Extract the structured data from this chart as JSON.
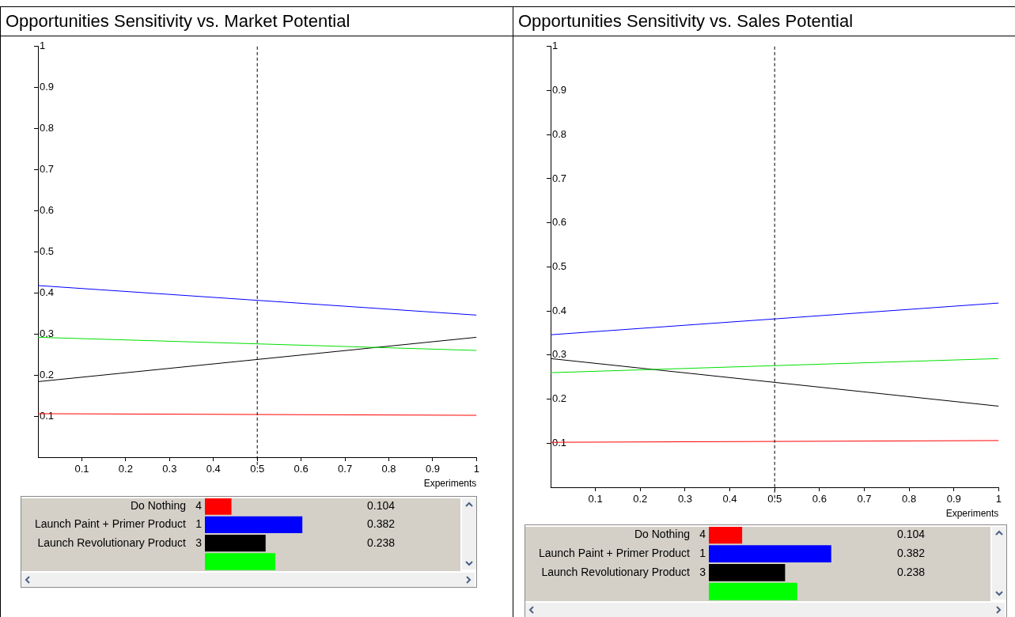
{
  "chart_data": [
    {
      "type": "line",
      "title": "Opportunities Sensitivity vs. Market Potential",
      "xlabel": "Experiments",
      "x": [
        0,
        0.5,
        1
      ],
      "series": [
        {
          "color": "#0000ff",
          "values": [
            0.418,
            0.382,
            0.346
          ]
        },
        {
          "color": "#00e000",
          "values": [
            0.292,
            0.276,
            0.26
          ]
        },
        {
          "color": "#000000",
          "values": [
            0.184,
            0.238,
            0.292
          ]
        },
        {
          "color": "#ff0000",
          "values": [
            0.106,
            0.104,
            0.102
          ]
        }
      ],
      "xlim": [
        0,
        1
      ],
      "ylim": [
        0,
        1
      ],
      "xticks": [
        0.1,
        0.2,
        0.3,
        0.4,
        0.5,
        0.6,
        0.7,
        0.8,
        0.9,
        1
      ],
      "yticks": [
        0.1,
        0.2,
        0.3,
        0.4,
        0.5,
        0.6,
        0.7,
        0.8,
        0.9,
        1
      ],
      "ref_lines": [
        {
          "axis": "x",
          "value": 0.5,
          "color": "#000000",
          "line_style": "dashed"
        }
      ],
      "grid": false,
      "legend": false,
      "marker": "none",
      "line_style": "solid"
    },
    {
      "type": "bar",
      "orientation": "horizontal",
      "categories": [
        "Do Nothing",
        "Launch Paint + Primer Product",
        "Launch Revolutionary Product",
        null
      ],
      "values": [
        0.104,
        0.382,
        0.238,
        0.276
      ],
      "colors": [
        "#ff0000",
        "#0000ff",
        "#000000",
        "#00ff00"
      ],
      "value_labels": [
        "0.104",
        "0.382",
        "0.238",
        null
      ],
      "annotations": [
        "4",
        "1",
        "3"
      ],
      "legend": false
    },
    {
      "type": "line",
      "title": "Opportunities Sensitivity vs. Sales Potential",
      "xlabel": "Experiments",
      "x": [
        0,
        0.5,
        1
      ],
      "series": [
        {
          "color": "#0000ff",
          "values": [
            0.346,
            0.382,
            0.418
          ]
        },
        {
          "color": "#00e000",
          "values": [
            0.26,
            0.276,
            0.292
          ]
        },
        {
          "color": "#000000",
          "values": [
            0.292,
            0.238,
            0.184
          ]
        },
        {
          "color": "#ff0000",
          "values": [
            0.102,
            0.104,
            0.106
          ]
        }
      ],
      "xlim": [
        0,
        1
      ],
      "ylim": [
        0,
        1
      ],
      "xticks": [
        0.1,
        0.2,
        0.3,
        0.4,
        0.5,
        0.6,
        0.7,
        0.8,
        0.9,
        1
      ],
      "yticks": [
        0.1,
        0.2,
        0.3,
        0.4,
        0.5,
        0.6,
        0.7,
        0.8,
        0.9,
        1
      ],
      "ref_lines": [
        {
          "axis": "x",
          "value": 0.5,
          "color": "#000000",
          "line_style": "dashed"
        }
      ],
      "grid": false,
      "legend": false,
      "marker": "none",
      "line_style": "solid"
    },
    {
      "type": "bar",
      "orientation": "horizontal",
      "categories": [
        "Do Nothing",
        "Launch Paint + Primer Product",
        "Launch Revolutionary Product",
        null
      ],
      "values": [
        0.104,
        0.382,
        0.238,
        0.276
      ],
      "colors": [
        "#ff0000",
        "#0000ff",
        "#000000",
        "#00ff00"
      ],
      "value_labels": [
        "0.104",
        "0.382",
        "0.238",
        null
      ],
      "annotations": [
        "4",
        "1",
        "3"
      ],
      "legend": false
    }
  ]
}
